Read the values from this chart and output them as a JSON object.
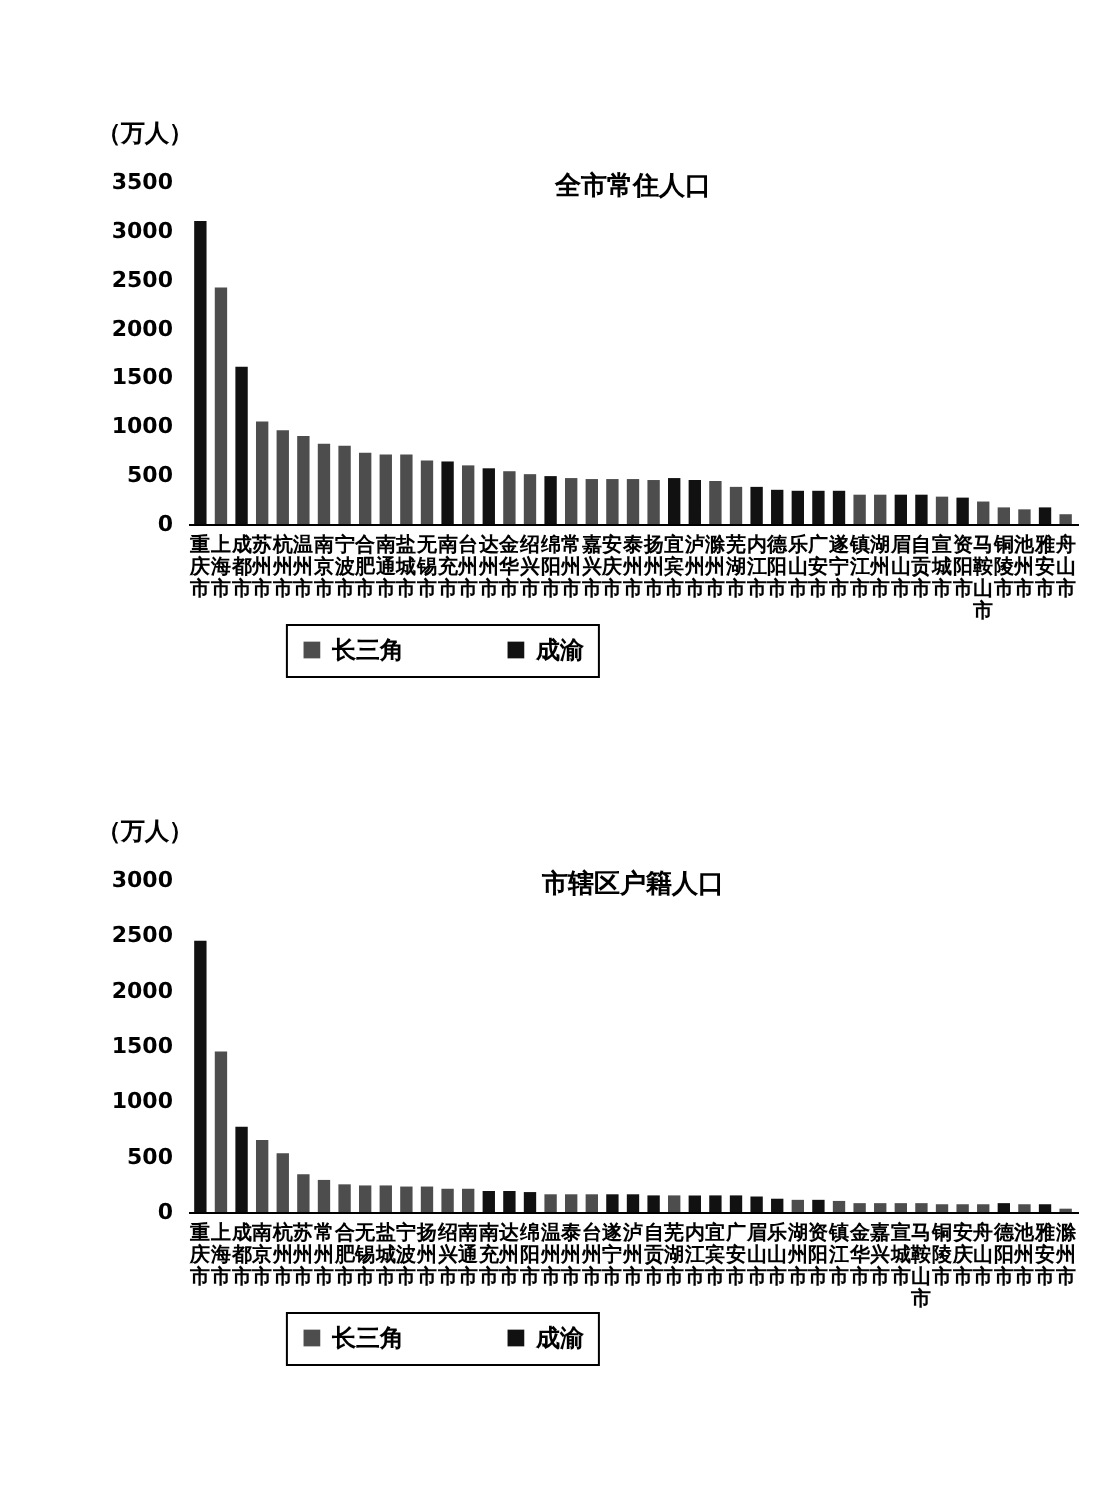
{
  "chart_data": [
    {
      "type": "bar",
      "title": "全市常住人口",
      "ylabel": "（万人）",
      "categories": [
        "重庆市",
        "上海市",
        "成都市",
        "苏州市",
        "杭州市",
        "温州市",
        "南京市",
        "宁波市",
        "合肥市",
        "南通市",
        "盐城市",
        "无锡市",
        "南充市",
        "台州市",
        "达州市",
        "金华市",
        "绍兴市",
        "绵阳市",
        "常州市",
        "嘉兴市",
        "安庆市",
        "泰州市",
        "扬州市",
        "宜宾市",
        "泸州市",
        "滁州市",
        "芜湖市",
        "内江市",
        "德阳市",
        "乐山市",
        "广安市",
        "遂宁市",
        "镇江市",
        "湖州市",
        "眉山市",
        "自贡市",
        "宣城市",
        "资阳市",
        "马鞍山市",
        "铜陵市",
        "池州市",
        "雅安市",
        "舟山市"
      ],
      "series": [
        {
          "name": "长三角",
          "color": "#4d4d4d",
          "values": [
            null,
            2420,
            null,
            1050,
            960,
            900,
            820,
            800,
            730,
            710,
            710,
            650,
            null,
            600,
            null,
            540,
            510,
            null,
            470,
            460,
            460,
            460,
            450,
            null,
            null,
            440,
            380,
            null,
            null,
            null,
            null,
            null,
            300,
            300,
            null,
            null,
            280,
            null,
            230,
            170,
            150,
            null,
            100
          ]
        },
        {
          "name": "成渝",
          "color": "#111111",
          "values": [
            3100,
            null,
            1610,
            null,
            null,
            null,
            null,
            null,
            null,
            null,
            null,
            null,
            640,
            null,
            570,
            null,
            null,
            490,
            null,
            null,
            null,
            null,
            null,
            470,
            450,
            null,
            null,
            380,
            350,
            340,
            340,
            340,
            null,
            null,
            300,
            300,
            null,
            270,
            null,
            null,
            null,
            170,
            null
          ]
        }
      ],
      "stacked": true,
      "ylim": [
        0,
        3500
      ],
      "yticks": [
        0,
        500,
        1000,
        1500,
        2000,
        2500,
        3000,
        3500
      ],
      "legend": "bottom"
    },
    {
      "type": "bar",
      "title": "市辖区户籍人口",
      "ylabel": "（万人）",
      "categories": [
        "重庆市",
        "上海市",
        "成都市",
        "南京市",
        "杭州市",
        "苏州市",
        "常州市",
        "合肥市",
        "无锡市",
        "盐城市",
        "宁波市",
        "扬州市",
        "绍兴市",
        "南通市",
        "南充市",
        "达州市",
        "绵阳市",
        "温州市",
        "泰州市",
        "台州市",
        "遂宁市",
        "泸州市",
        "自贡市",
        "芜湖市",
        "内江市",
        "宜宾市",
        "广安市",
        "眉山市",
        "乐山市",
        "湖州市",
        "资阳市",
        "镇江市",
        "金华市",
        "嘉兴市",
        "宣城市",
        "马鞍山市",
        "铜陵市",
        "安庆市",
        "舟山市",
        "德阳市",
        "池州市",
        "雅安市",
        "滁州市"
      ],
      "series": [
        {
          "name": "长三角",
          "color": "#4d4d4d",
          "values": [
            null,
            1450,
            null,
            650,
            530,
            340,
            290,
            250,
            240,
            240,
            230,
            230,
            210,
            210,
            null,
            null,
            null,
            160,
            160,
            160,
            null,
            null,
            null,
            150,
            null,
            null,
            null,
            null,
            null,
            110,
            null,
            100,
            80,
            80,
            80,
            80,
            70,
            70,
            70,
            null,
            70,
            null,
            30
          ]
        },
        {
          "name": "成渝",
          "color": "#111111",
          "values": [
            2450,
            null,
            770,
            null,
            null,
            null,
            null,
            null,
            null,
            null,
            null,
            null,
            null,
            null,
            190,
            190,
            180,
            null,
            null,
            null,
            160,
            160,
            150,
            null,
            150,
            150,
            150,
            140,
            120,
            null,
            110,
            null,
            null,
            null,
            null,
            null,
            null,
            null,
            null,
            80,
            null,
            70,
            null
          ]
        }
      ],
      "stacked": true,
      "ylim": [
        0,
        3000
      ],
      "yticks": [
        0,
        500,
        1000,
        1500,
        2000,
        2500,
        3000
      ],
      "legend": "bottom"
    }
  ]
}
